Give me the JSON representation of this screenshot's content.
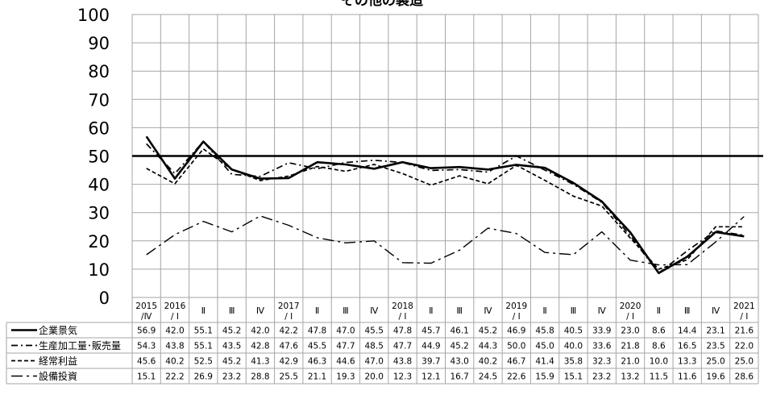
{
  "chart_data": {
    "type": "line",
    "title": "その他の製造",
    "ylim": [
      0,
      100
    ],
    "yticks": [
      0,
      10,
      20,
      30,
      40,
      50,
      60,
      70,
      80,
      90,
      100
    ],
    "reference_line": 50,
    "grid": true,
    "categories": [
      [
        "2015",
        "/Ⅳ"
      ],
      [
        "2016",
        "/ Ⅰ"
      ],
      [
        "Ⅱ"
      ],
      [
        "Ⅲ"
      ],
      [
        "Ⅳ"
      ],
      [
        "2017",
        "/ Ⅰ"
      ],
      [
        "Ⅱ"
      ],
      [
        "Ⅲ"
      ],
      [
        "Ⅳ"
      ],
      [
        "2018",
        "/ Ⅰ"
      ],
      [
        "Ⅱ"
      ],
      [
        "Ⅲ"
      ],
      [
        "Ⅳ"
      ],
      [
        "2019",
        "/ Ⅰ"
      ],
      [
        "Ⅱ"
      ],
      [
        "Ⅲ"
      ],
      [
        "Ⅳ"
      ],
      [
        "2020",
        "/ Ⅰ"
      ],
      [
        "Ⅱ"
      ],
      [
        "Ⅲ"
      ],
      [
        "Ⅳ"
      ],
      [
        "2021",
        "/ Ⅰ"
      ]
    ],
    "series": [
      {
        "name": "企業景気",
        "style": "solid",
        "values": [
          56.9,
          42.0,
          55.1,
          45.2,
          42.0,
          42.2,
          47.8,
          47.0,
          45.5,
          47.8,
          45.7,
          46.1,
          45.2,
          46.9,
          45.8,
          40.5,
          33.9,
          23.0,
          8.6,
          14.4,
          23.1,
          21.6
        ]
      },
      {
        "name": "生産加工量･販売量",
        "style": "dashdot",
        "values": [
          54.3,
          43.8,
          55.1,
          43.5,
          42.8,
          47.6,
          45.5,
          47.7,
          48.5,
          47.7,
          44.9,
          45.2,
          44.3,
          50.0,
          45.0,
          40.0,
          33.6,
          21.8,
          8.6,
          16.5,
          23.5,
          22.0
        ]
      },
      {
        "name": "経常利益",
        "style": "dash",
        "values": [
          45.6,
          40.2,
          52.5,
          45.2,
          41.3,
          42.9,
          46.3,
          44.6,
          47.0,
          43.8,
          39.7,
          43.0,
          40.2,
          46.7,
          41.4,
          35.8,
          32.3,
          21.0,
          10.0,
          13.3,
          25.0,
          25.0
        ]
      },
      {
        "name": "設備投資",
        "style": "longdashdot",
        "values": [
          15.1,
          22.2,
          26.9,
          23.2,
          28.8,
          25.5,
          21.1,
          19.3,
          20.0,
          12.3,
          12.1,
          16.7,
          24.5,
          22.6,
          15.9,
          15.1,
          23.2,
          13.2,
          11.5,
          11.6,
          19.6,
          28.6
        ]
      }
    ]
  }
}
